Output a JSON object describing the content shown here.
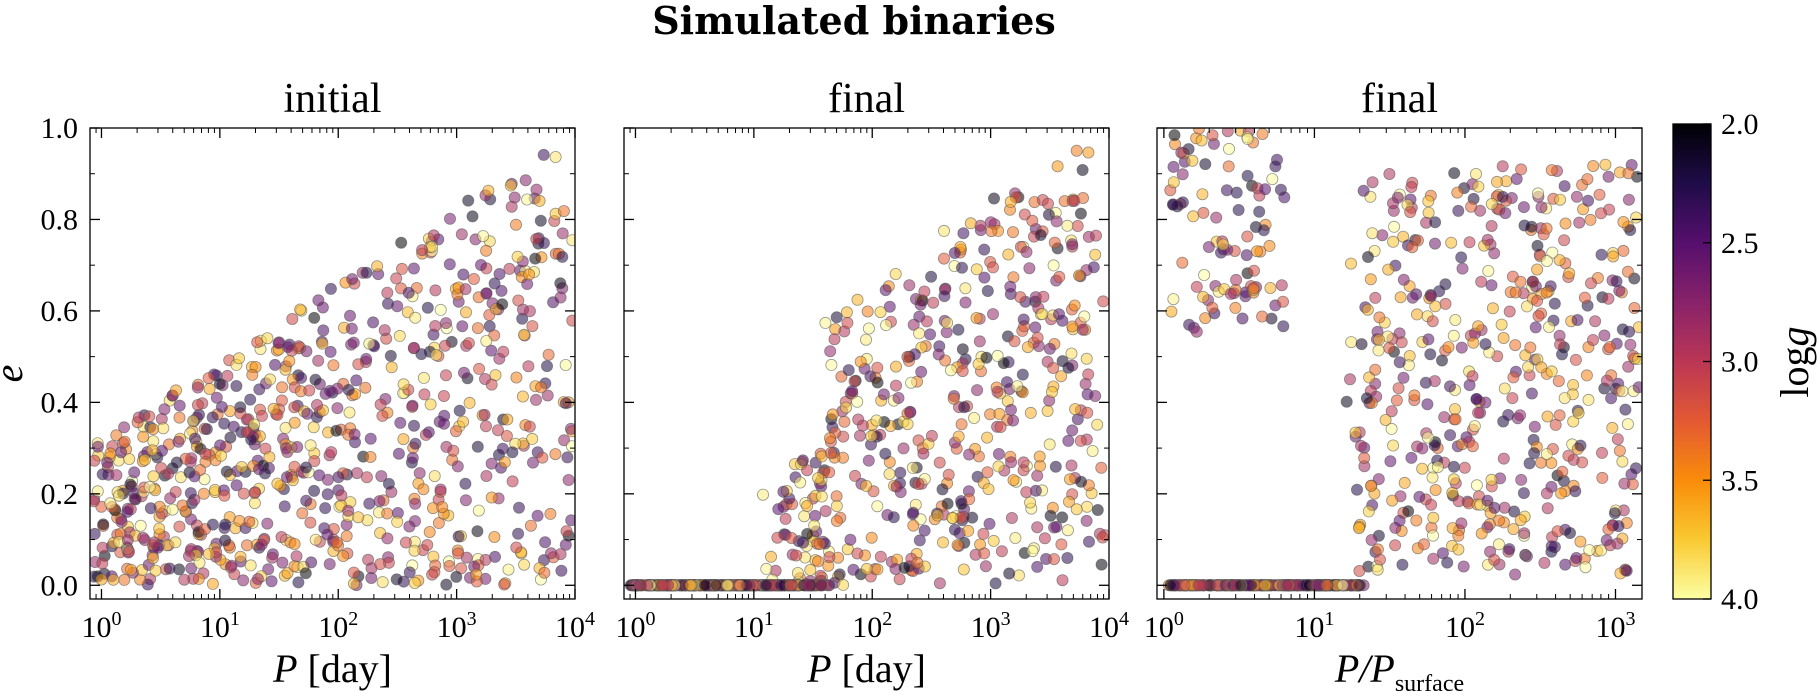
{
  "figure": {
    "title": "Simulated binaries",
    "cbar_label": "log g",
    "cbar_label_italic_part": "g",
    "cbar_label_roman_part": "log",
    "cbar_ticks": [
      2.0,
      2.5,
      3.0,
      3.5,
      4.0
    ],
    "cbar_tick_labels": [
      "2.0",
      "2.5",
      "3.0",
      "3.5",
      "4.0"
    ],
    "cbar_range": [
      2.0,
      4.0
    ],
    "colormap": [
      "#000004",
      "#1f0c48",
      "#550f6d",
      "#88226a",
      "#ba3655",
      "#e35933",
      "#f98c0a",
      "#f9c932",
      "#fcffa4"
    ],
    "marker_edge_color": "#555555"
  },
  "chart_data": [
    {
      "type": "scatter",
      "title": "initial",
      "xlabel": "P [day]",
      "xlabel_italic": "P",
      "xlabel_unit": "[day]",
      "ylabel": "e",
      "xscale": "log",
      "xlim": [
        0.8,
        10000
      ],
      "ylim": [
        -0.03,
        1.0
      ],
      "xticks": [
        1,
        10,
        100,
        1000,
        10000
      ],
      "xtick_bases": [
        "10",
        "10",
        "10",
        "10",
        "10"
      ],
      "xtick_exps": [
        "0",
        "1",
        "2",
        "3",
        "4"
      ],
      "yticks": [
        0.0,
        0.2,
        0.4,
        0.6,
        0.8,
        1.0
      ],
      "ytick_labels": [
        "0.0",
        "0.2",
        "0.4",
        "0.6",
        "0.8",
        "1.0"
      ],
      "n_points": 820,
      "distribution": "log-uniform P from 1 to 10^4 day; e uniform with upper envelope rising with P; circular points rare",
      "circular_fraction": 0.0
    },
    {
      "type": "scatter",
      "title": "final",
      "xlabel": "P [day]",
      "xlabel_italic": "P",
      "xlabel_unit": "[day]",
      "ylabel": "",
      "xscale": "log",
      "xlim": [
        0.8,
        10000
      ],
      "ylim": [
        -0.03,
        1.0
      ],
      "xticks": [
        1,
        10,
        100,
        1000,
        10000
      ],
      "xtick_bases": [
        "10",
        "10",
        "10",
        "10",
        "10"
      ],
      "xtick_exps": [
        "0",
        "1",
        "2",
        "3",
        "4"
      ],
      "yticks": [
        0.0,
        0.2,
        0.4,
        0.6,
        0.8,
        1.0
      ],
      "n_points": 820,
      "distribution": "binaries below ~10-40 day circularized to e=0; eccentric orbits mostly above ~10 day",
      "circular_P_range": [
        1,
        45
      ]
    },
    {
      "type": "scatter",
      "title": "final",
      "xlabel": "P/P_surface",
      "xlabel_italic": "P/P",
      "xlabel_sub": "surface",
      "ylabel": "",
      "xscale": "log",
      "xlim": [
        0.9,
        1500
      ],
      "ylim": [
        -0.03,
        1.0
      ],
      "xticks": [
        1,
        10,
        100,
        1000
      ],
      "xtick_bases": [
        "10",
        "10",
        "10",
        "10"
      ],
      "xtick_exps": [
        "0",
        "1",
        "2",
        "3"
      ],
      "yticks": [
        0.0,
        0.2,
        0.4,
        0.6,
        0.8,
        1.0
      ],
      "n_points": 820,
      "distribution": "circular orbits at e=0 for P/Psurface below ~20; eccentric orbits above ~10",
      "circular_x_range": [
        1.1,
        20
      ]
    }
  ]
}
